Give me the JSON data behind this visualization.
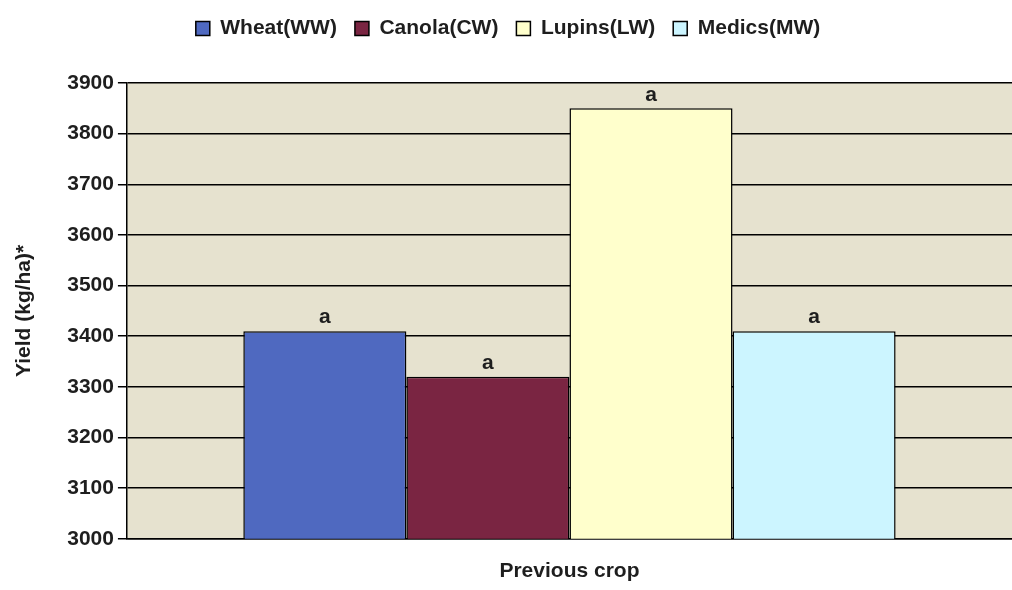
{
  "chart_data": {
    "type": "bar",
    "xlabel": "Previous crop",
    "ylabel": "Yield (kg/ha)*",
    "categories": [
      null
    ],
    "series": [
      {
        "name": "Wheat(WW)",
        "color": "#4f69c0",
        "values": [
          3410
        ],
        "value_labels": [
          "a"
        ]
      },
      {
        "name": "Canola(CW)",
        "color": "#7a2542",
        "values": [
          3320
        ],
        "value_labels": [
          "a"
        ]
      },
      {
        "name": "Lupins(LW)",
        "color": "#ffffcc",
        "values": [
          3850
        ],
        "value_labels": [
          "a"
        ]
      },
      {
        "name": "Medics(MW)",
        "color": "#ccf5ff",
        "values": [
          3410
        ],
        "value_labels": [
          "a"
        ]
      }
    ],
    "ylim": [
      3000,
      3900
    ],
    "yticks": [
      3000,
      3100,
      3200,
      3300,
      3400,
      3500,
      3600,
      3700,
      3800,
      3900
    ],
    "grid": "y",
    "legend": "top",
    "tick_labels": "y"
  }
}
